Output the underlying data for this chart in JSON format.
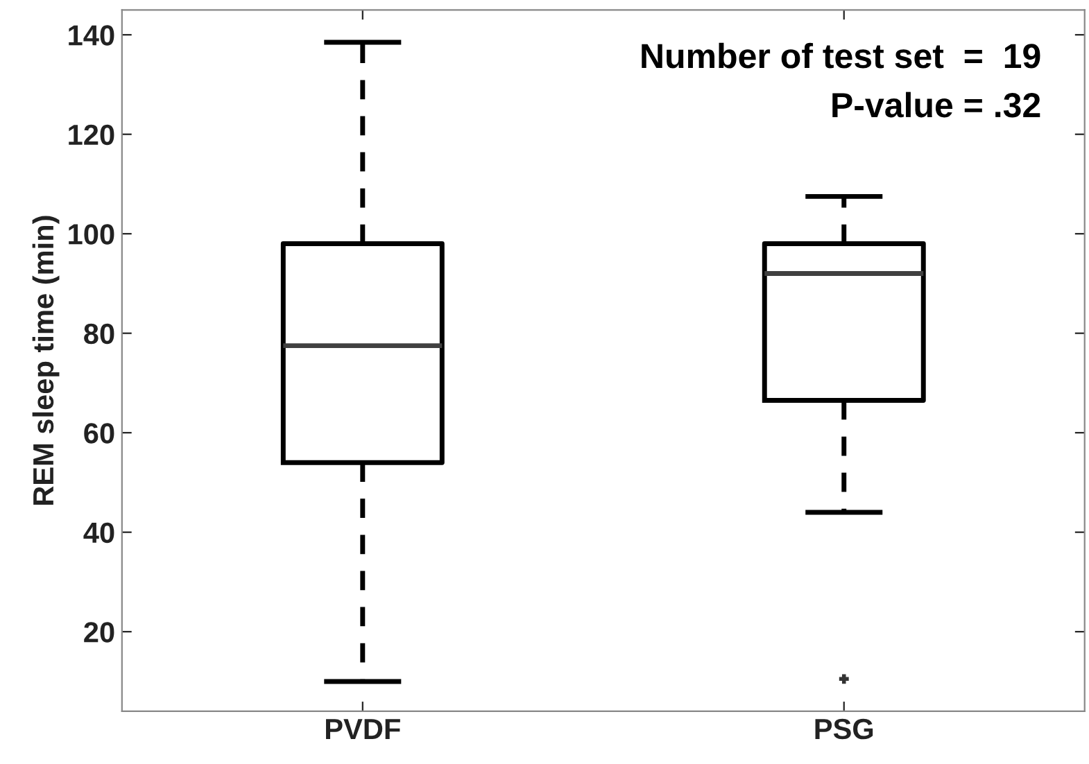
{
  "chart_data": {
    "type": "box",
    "ylabel": "REM sleep time (min)",
    "categories": [
      "PVDF",
      "PSG"
    ],
    "boxes": [
      {
        "low": 10,
        "q1": 54,
        "median": 77.5,
        "q3": 98,
        "high": 138.5
      },
      {
        "low": 44,
        "q1": 66.5,
        "median": 92,
        "q3": 98,
        "high": 107.5,
        "outliers": [
          10.5
        ]
      }
    ],
    "ylim": [
      4,
      145
    ],
    "yticks": [
      20,
      40,
      60,
      80,
      100,
      120,
      140
    ],
    "grid": false,
    "annotations": [
      "Number of test set  =  19",
      "P-value = .32"
    ]
  }
}
